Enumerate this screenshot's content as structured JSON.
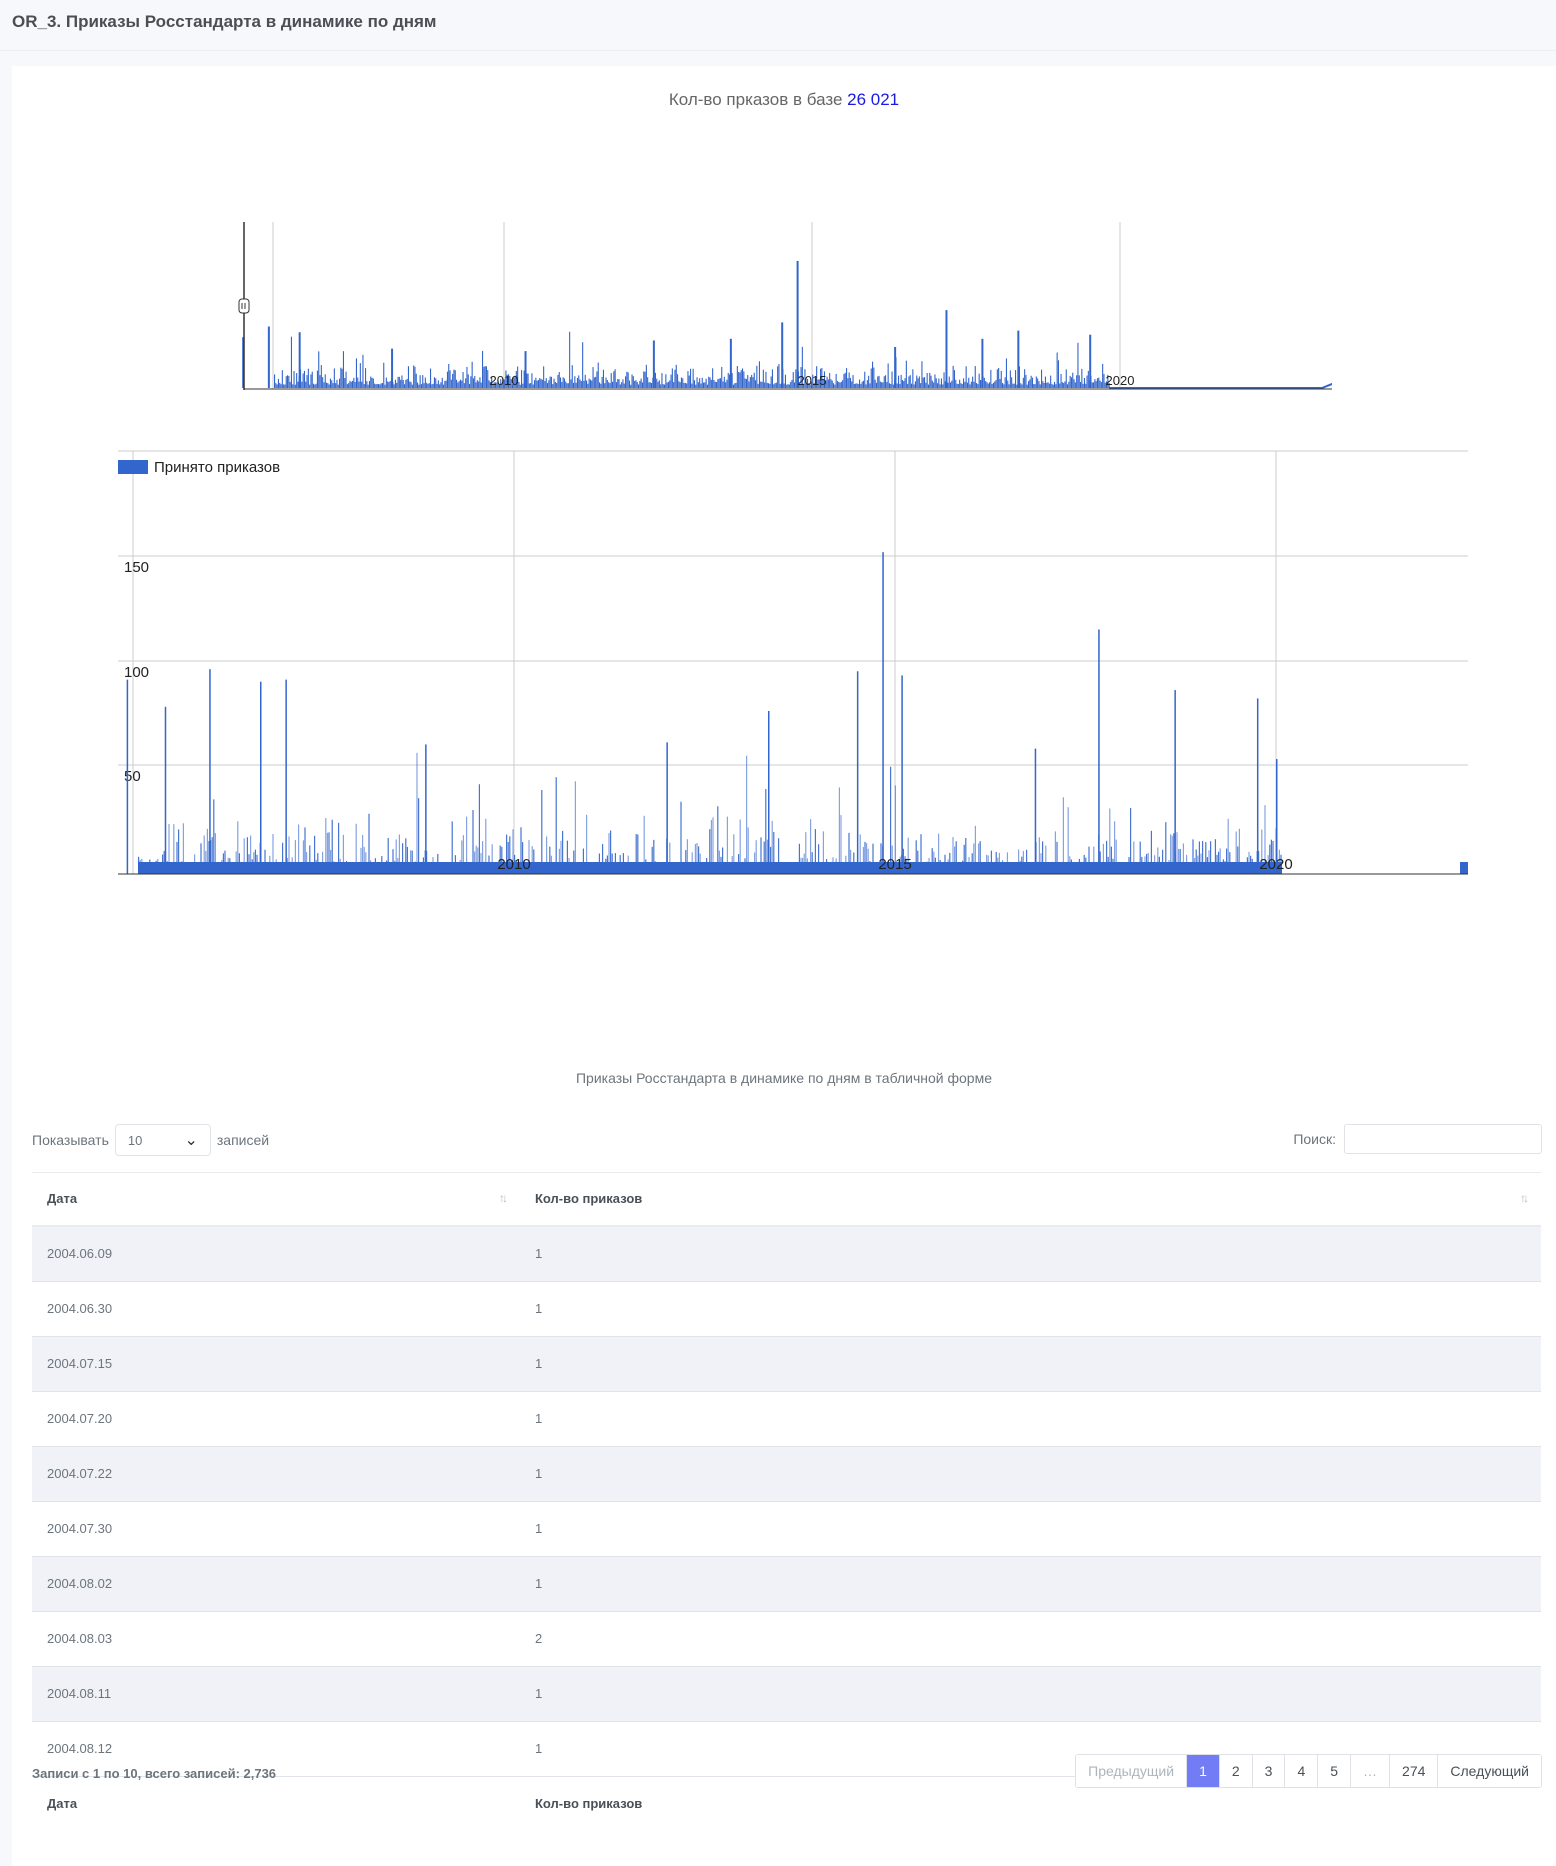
{
  "page": {
    "title": "OR_3. Приказы Росстандарта в динамике по дням"
  },
  "stat": {
    "label": "Кол-во прказов в базе",
    "value": "26 021"
  },
  "colors": {
    "series": "#3366cc",
    "accent": "#727cf5",
    "stat_number": "#1a1ae6"
  },
  "chart_data": [
    {
      "type": "area",
      "role": "range-navigator",
      "x_ticks": [
        "2010",
        "2015",
        "2020"
      ],
      "series": [
        {
          "values_estimated_peaks": [
            {
              "x": "2005-06",
              "y": 70
            },
            {
              "x": "2005-10",
              "y": 62
            },
            {
              "x": "2006-03",
              "y": 75
            },
            {
              "x": "2006-09",
              "y": 68
            },
            {
              "x": "2008-03",
              "y": 48
            },
            {
              "x": "2010-05",
              "y": 45
            },
            {
              "x": "2012-06",
              "y": 58
            },
            {
              "x": "2013-09",
              "y": 60
            },
            {
              "x": "2014-07",
              "y": 80
            },
            {
              "x": "2014-10",
              "y": 155
            },
            {
              "x": "2016-05",
              "y": 50
            },
            {
              "x": "2017-03",
              "y": 95
            },
            {
              "x": "2017-10",
              "y": 60
            },
            {
              "x": "2018-05",
              "y": 70
            },
            {
              "x": "2019-07",
              "y": 65
            }
          ]
        }
      ]
    },
    {
      "type": "area",
      "legend": {
        "position": "top-left",
        "label": "Принято приказов"
      },
      "x_ticks": [
        "2010",
        "2015",
        "2020"
      ],
      "y_ticks": [
        "50",
        "100",
        "150"
      ],
      "ylim": [
        0,
        200
      ],
      "series": [
        {
          "name": "Принято приказов",
          "peaks": [
            {
              "x": "2004-12",
              "y": 93
            },
            {
              "x": "2005-06",
              "y": 80
            },
            {
              "x": "2006-01",
              "y": 98
            },
            {
              "x": "2006-09",
              "y": 92
            },
            {
              "x": "2007-01",
              "y": 93
            },
            {
              "x": "2008-11",
              "y": 62
            },
            {
              "x": "2012-01",
              "y": 63
            },
            {
              "x": "2013-05",
              "y": 78
            },
            {
              "x": "2014-07",
              "y": 97
            },
            {
              "x": "2014-11",
              "y": 154
            },
            {
              "x": "2015-02",
              "y": 95
            },
            {
              "x": "2016-11",
              "y": 60
            },
            {
              "x": "2017-09",
              "y": 117
            },
            {
              "x": "2018-09",
              "y": 88
            },
            {
              "x": "2019-10",
              "y": 84
            },
            {
              "x": "2020-01",
              "y": 55
            }
          ]
        }
      ]
    }
  ],
  "table": {
    "caption": "Приказы Росстандарта в динамике по дням в табличной форме",
    "length_label_before": "Показывать",
    "length_value": "10",
    "length_label_after": "записей",
    "search_label": "Поиск:",
    "columns": [
      "Дата",
      "Кол-во приказов"
    ],
    "rows": [
      [
        "2004.06.09",
        "1"
      ],
      [
        "2004.06.30",
        "1"
      ],
      [
        "2004.07.15",
        "1"
      ],
      [
        "2004.07.20",
        "1"
      ],
      [
        "2004.07.22",
        "1"
      ],
      [
        "2004.07.30",
        "1"
      ],
      [
        "2004.08.02",
        "1"
      ],
      [
        "2004.08.03",
        "2"
      ],
      [
        "2004.08.11",
        "1"
      ],
      [
        "2004.08.12",
        "1"
      ]
    ],
    "info": "Записи с 1 по 10, всего записей: 2,736",
    "pagination": [
      "Предыдущий",
      "1",
      "2",
      "3",
      "4",
      "5",
      "…",
      "274",
      "Следующий"
    ]
  }
}
